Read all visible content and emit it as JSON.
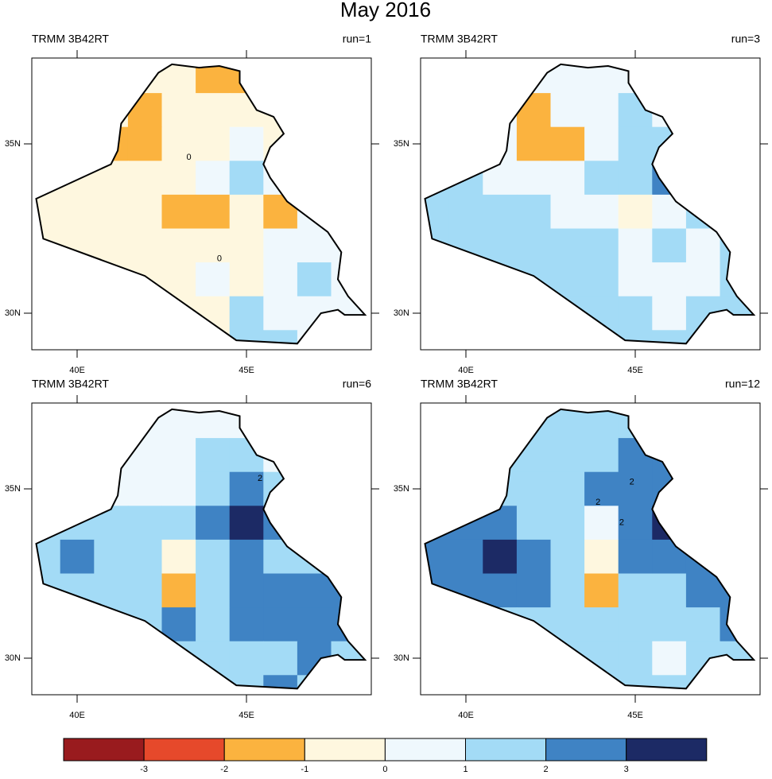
{
  "title": "May 2016",
  "lons": [
    39,
    40,
    41,
    42,
    43,
    44,
    45,
    46,
    47,
    48
  ],
  "lats": [
    37,
    36,
    35,
    34,
    33,
    32,
    31,
    30,
    29
  ],
  "xticks": [
    {
      "value": 40,
      "label": "40E"
    },
    {
      "value": 45,
      "label": "45E"
    }
  ],
  "yticks": [
    {
      "value": 35,
      "label": "35N"
    },
    {
      "value": 30,
      "label": "30N"
    }
  ],
  "colorbar": {
    "levels": [
      -3,
      -2,
      -1,
      0,
      1,
      2,
      3
    ],
    "colors": [
      "#991b1e",
      "#e6492b",
      "#fbb33f",
      "#fef7df",
      "#eff8fd",
      "#a3dbf6",
      "#3f83c4",
      "#1c2a65"
    ]
  },
  "panels": [
    {
      "left_label": "TRMM 3B42RT",
      "right_label": "run=1",
      "contour_labels": [
        "0",
        "0"
      ],
      "values": [
        [
          -0.5,
          -0.5,
          -0.5,
          -0.5,
          -0.5,
          -1.5,
          -1.5,
          -0.5,
          -0.5,
          -0.5
        ],
        [
          -0.5,
          -0.5,
          -0.5,
          -1.5,
          -0.5,
          -0.5,
          -0.5,
          -0.5,
          -0.5,
          -0.5
        ],
        [
          -0.5,
          -0.5,
          -1.5,
          -1.5,
          -0.5,
          -0.5,
          0.5,
          -0.5,
          -0.5,
          -0.5
        ],
        [
          -0.5,
          -0.5,
          -0.5,
          -0.5,
          -0.5,
          0.5,
          1.5,
          0.5,
          0.5,
          -0.5
        ],
        [
          -0.5,
          -0.5,
          -0.5,
          -0.5,
          -1.5,
          -1.5,
          -0.5,
          -1.5,
          0.5,
          0.5
        ],
        [
          -0.5,
          -0.5,
          -0.5,
          -0.5,
          -0.5,
          -0.5,
          -0.5,
          0.5,
          0.5,
          0.5
        ],
        [
          -0.5,
          -0.5,
          -0.5,
          -0.5,
          -0.5,
          0.5,
          -0.5,
          0.5,
          1.5,
          0.5
        ],
        [
          -0.5,
          -0.5,
          -0.5,
          -0.5,
          -0.5,
          -0.5,
          1.5,
          0.5,
          0.5,
          0.5
        ],
        [
          -0.5,
          -0.5,
          -0.5,
          -0.5,
          -0.5,
          -0.5,
          1.5,
          1.5,
          0.5,
          0.5
        ]
      ]
    },
    {
      "left_label": "TRMM 3B42RT",
      "right_label": "run=3",
      "contour_labels": [],
      "values": [
        [
          0.5,
          0.5,
          0.5,
          0.5,
          0.5,
          0.5,
          0.5,
          0.5,
          0.5,
          0.5
        ],
        [
          0.5,
          0.5,
          0.5,
          -1.5,
          0.5,
          0.5,
          1.5,
          0.5,
          0.5,
          0.5
        ],
        [
          0.5,
          0.5,
          0.5,
          -1.5,
          -1.5,
          0.5,
          1.5,
          1.5,
          0.5,
          0.5
        ],
        [
          1.5,
          1.5,
          0.5,
          0.5,
          0.5,
          1.5,
          1.5,
          2.5,
          1.5,
          0.5
        ],
        [
          1.5,
          1.5,
          1.5,
          1.5,
          0.5,
          0.5,
          -0.5,
          0.5,
          1.5,
          1.5
        ],
        [
          1.5,
          1.5,
          1.5,
          1.5,
          1.5,
          1.5,
          0.5,
          1.5,
          0.5,
          1.5
        ],
        [
          1.5,
          1.5,
          1.5,
          1.5,
          1.5,
          1.5,
          0.5,
          0.5,
          0.5,
          1.5
        ],
        [
          1.5,
          1.5,
          1.5,
          1.5,
          1.5,
          1.5,
          1.5,
          0.5,
          1.5,
          1.5
        ],
        [
          1.5,
          1.5,
          1.5,
          1.5,
          1.5,
          1.5,
          1.5,
          1.5,
          1.5,
          1.5
        ]
      ]
    },
    {
      "left_label": "TRMM 3B42RT",
      "right_label": "run=6",
      "contour_labels": [
        "2"
      ],
      "values": [
        [
          0.5,
          0.5,
          0.5,
          0.5,
          0.5,
          0.5,
          0.5,
          0.5,
          0.5,
          0.5
        ],
        [
          0.5,
          0.5,
          0.5,
          0.5,
          0.5,
          1.5,
          1.5,
          0.5,
          0.5,
          0.5
        ],
        [
          0.5,
          0.5,
          0.5,
          0.5,
          0.5,
          1.5,
          2.5,
          1.5,
          0.5,
          0.5
        ],
        [
          1.5,
          1.5,
          1.5,
          1.5,
          1.5,
          2.5,
          3.5,
          2.5,
          1.5,
          0.5
        ],
        [
          1.5,
          2.5,
          1.5,
          1.5,
          -0.5,
          1.5,
          2.5,
          1.5,
          1.5,
          1.5
        ],
        [
          1.5,
          1.5,
          1.5,
          1.5,
          -1.5,
          1.5,
          2.5,
          2.5,
          2.5,
          2.5
        ],
        [
          1.5,
          1.5,
          1.5,
          1.5,
          2.5,
          1.5,
          2.5,
          2.5,
          2.5,
          2.5
        ],
        [
          1.5,
          1.5,
          1.5,
          1.5,
          1.5,
          1.5,
          1.5,
          1.5,
          2.5,
          1.5
        ],
        [
          1.5,
          1.5,
          1.5,
          1.5,
          1.5,
          1.5,
          1.5,
          2.5,
          1.5,
          1.5
        ]
      ]
    },
    {
      "left_label": "TRMM 3B42RT",
      "right_label": "run=12",
      "contour_labels": [
        "2",
        "2",
        "2"
      ],
      "values": [
        [
          1.5,
          1.5,
          1.5,
          1.5,
          1.5,
          1.5,
          1.5,
          1.5,
          -1.5,
          1.5
        ],
        [
          1.5,
          1.5,
          1.5,
          1.5,
          1.5,
          1.5,
          2.5,
          2.5,
          1.5,
          1.5
        ],
        [
          1.5,
          1.5,
          1.5,
          1.5,
          1.5,
          2.5,
          2.5,
          2.5,
          2.5,
          1.5
        ],
        [
          2.5,
          2.5,
          2.5,
          1.5,
          1.5,
          0.5,
          2.5,
          3.5,
          2.5,
          1.5
        ],
        [
          2.5,
          2.5,
          3.5,
          2.5,
          1.5,
          -0.5,
          2.5,
          2.5,
          2.5,
          1.5
        ],
        [
          2.5,
          2.5,
          2.5,
          2.5,
          1.5,
          -1.5,
          1.5,
          1.5,
          2.5,
          2.5
        ],
        [
          1.5,
          1.5,
          1.5,
          1.5,
          1.5,
          1.5,
          1.5,
          1.5,
          1.5,
          2.5
        ],
        [
          1.5,
          1.5,
          1.5,
          1.5,
          1.5,
          1.5,
          1.5,
          0.5,
          1.5,
          1.5
        ],
        [
          1.5,
          1.5,
          1.5,
          1.5,
          1.5,
          1.5,
          1.5,
          1.5,
          1.5,
          1.5
        ]
      ]
    }
  ]
}
